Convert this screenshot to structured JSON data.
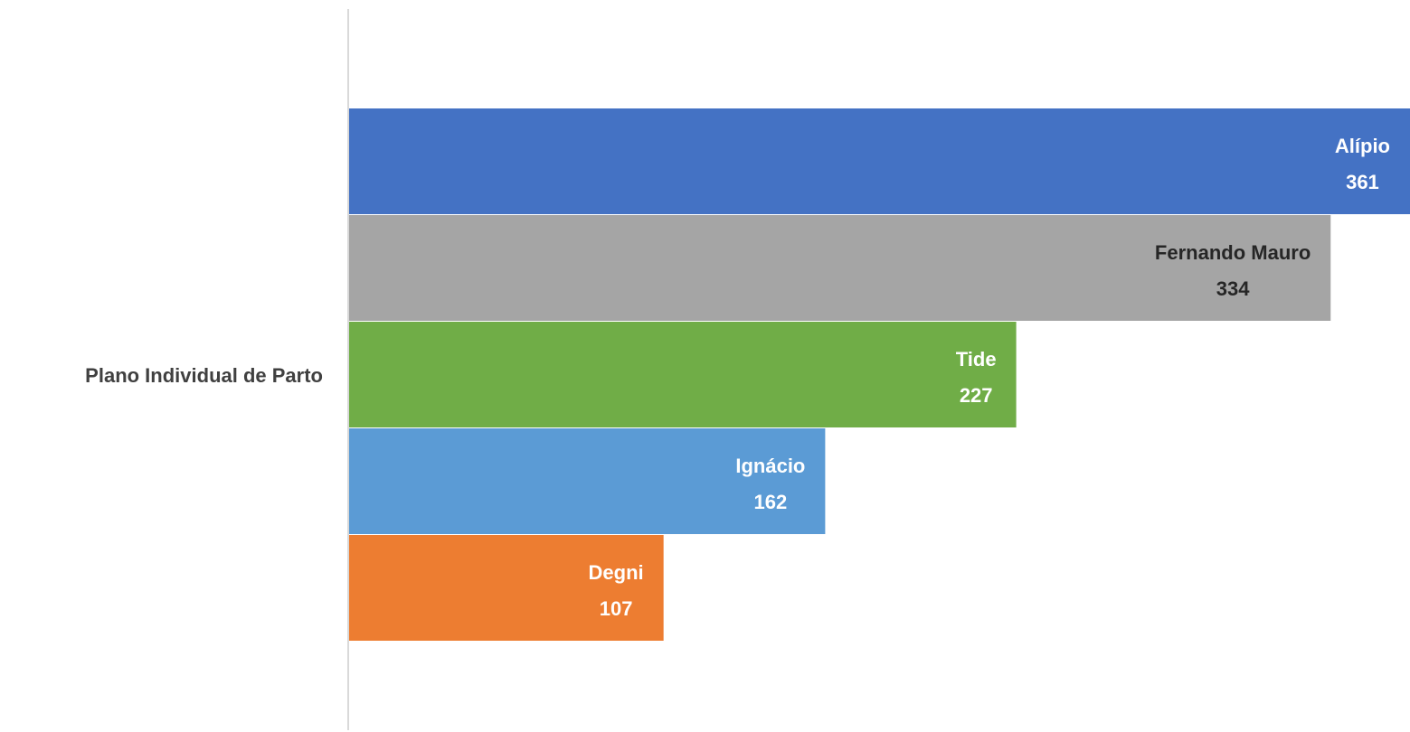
{
  "chart_data": {
    "type": "bar",
    "orientation": "horizontal",
    "categories": [
      "Plano Individual de Parto"
    ],
    "series": [
      {
        "name": "Alípio",
        "values": [
          361
        ],
        "color": "#4472C4"
      },
      {
        "name": "Fernando Mauro",
        "values": [
          334
        ],
        "color": "#A5A5A5"
      },
      {
        "name": "Tide",
        "values": [
          227
        ],
        "color": "#70AD47"
      },
      {
        "name": "Ignácio",
        "values": [
          162
        ],
        "color": "#5B9BD5"
      },
      {
        "name": "Degni",
        "values": [
          107
        ],
        "color": "#ED7D31"
      }
    ],
    "data_labels": "series name and value, inside end",
    "xlim": [
      0,
      361
    ],
    "grid": false,
    "legend": "none",
    "axis_line_color": "#D9D9D9",
    "category_label_color": "#404040",
    "data_label_color": "#ffffff",
    "data_label_dark_color": "#262626"
  }
}
